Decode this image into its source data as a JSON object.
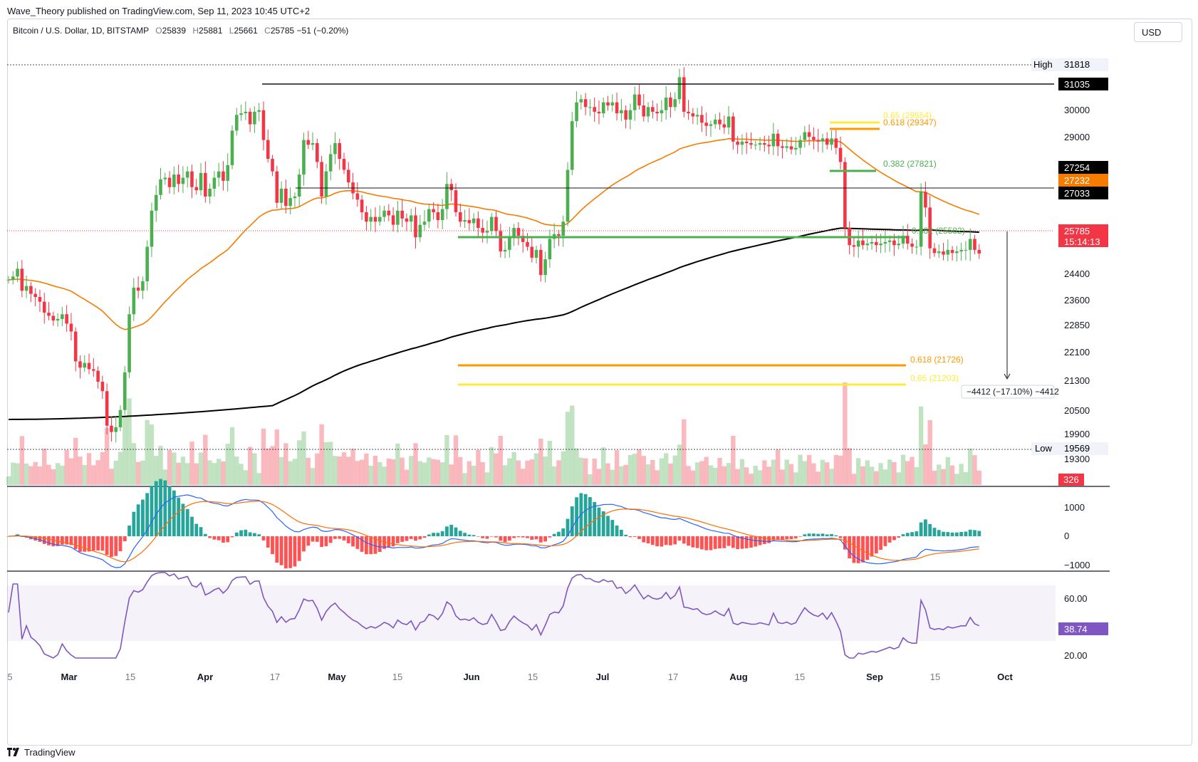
{
  "publisher": "Wave_Theory published on TradingView.com, Sep 11, 2023 10:45 UTC+2",
  "symbol": {
    "name": "Bitcoin / U.S. Dollar, 1D, BITSTAMP",
    "open_label": "O",
    "open": "25839",
    "high_label": "H",
    "high": "25881",
    "low_label": "L",
    "low": "25661",
    "close_label": "C",
    "close": "25785",
    "change": "−51 (−0.20%)"
  },
  "currency_button": "USD",
  "footer": {
    "brand": "TradingView"
  },
  "colors": {
    "up": "#4caf50",
    "down": "#f23645",
    "ema50": "#f57c00",
    "ema200": "#000000",
    "macd": "#2962ff",
    "signal": "#ff6d00",
    "rsi": "#7e57c2",
    "fib_618": "#ff9800",
    "fib_65": "#ffeb3b",
    "fib_382": "#4caf50"
  },
  "chart_data": {
    "type": "candlestick",
    "symbol": "BTCUSD",
    "timeframe": "1D",
    "x_axis": [
      "5",
      "Mar",
      "15",
      "Apr",
      "17",
      "May",
      "15",
      "Jun",
      "15",
      "Jul",
      "17",
      "Aug",
      "15",
      "Sep",
      "15",
      "Oct"
    ],
    "price_axis_labels": [
      "30000",
      "29000",
      "27254",
      "27232",
      "27033",
      "25785",
      "24400",
      "23600",
      "22850",
      "22100",
      "21300",
      "20500",
      "19900",
      "19300",
      "0"
    ],
    "ylim": [
      19000,
      32200
    ],
    "ohlc": [],
    "close": [
      24950,
      25050,
      25300,
      24600,
      24750,
      24500,
      24400,
      24250,
      23900,
      23800,
      23650,
      23700,
      23850,
      23550,
      23300,
      22350,
      22150,
      22300,
      22100,
      22050,
      21700,
      21400,
      20300,
      20100,
      20250,
      20800,
      22000,
      23850,
      24700,
      24600,
      24900,
      26000,
      27150,
      27650,
      28150,
      28200,
      27900,
      28300,
      28000,
      28200,
      28400,
      27900,
      27800,
      28350,
      27600,
      27850,
      28200,
      28400,
      28100,
      28600,
      29700,
      30200,
      30250,
      30300,
      29900,
      30300,
      30350,
      29400,
      28800,
      28400,
      27400,
      27850,
      27300,
      27550,
      27600,
      28300,
      29400,
      29250,
      29300,
      28700,
      27600,
      28400,
      28950,
      29300,
      28800,
      28450,
      28050,
      27700,
      27500,
      27100,
      26800,
      26950,
      26800,
      26950,
      27150,
      27000,
      26700,
      27150,
      26900,
      26800,
      27000,
      26300,
      26700,
      26800,
      27200,
      27100,
      26850,
      27200,
      28000,
      27800,
      27100,
      26800,
      26850,
      26750,
      26900,
      26600,
      26450,
      26500,
      26950,
      26500,
      25850,
      25900,
      26300,
      26600,
      26350,
      26150,
      26000,
      25650,
      25900,
      25100,
      25600,
      26250,
      26400,
      26350,
      26800,
      28450,
      30000,
      30600,
      30700,
      30450,
      30450,
      30300,
      30250,
      30600,
      30500,
      30600,
      30250,
      30350,
      30050,
      30350,
      30850,
      30500,
      30150,
      30450,
      30300,
      30250,
      30350,
      30750,
      30450,
      30700,
      31400,
      30300,
      30250,
      30150,
      30200,
      29950,
      29850,
      29900,
      30050,
      29900,
      29800,
      30150,
      29350,
      29250,
      29350,
      29300,
      29250,
      29250,
      29300,
      29250,
      29200,
      29600,
      29200,
      29150,
      29200,
      29100,
      29150,
      29400,
      29650,
      29500,
      29400,
      29350,
      29450,
      29250,
      29450,
      29150,
      28700,
      26600,
      26050,
      26000,
      26200,
      26050,
      26100,
      26150,
      26050,
      26100,
      26150,
      26200,
      26050,
      26100,
      26350,
      26100,
      26000,
      26000,
      27750,
      27250,
      25950,
      25800,
      25850,
      25750,
      25900,
      25800,
      25850,
      25900,
      25900,
      26250,
      25900,
      25785
    ],
    "volume_peak_label": "326",
    "horizontal_levels": [
      {
        "label": "High",
        "value": "31818"
      },
      {
        "label": "",
        "value": "31035"
      },
      {
        "label": "",
        "value": "27033"
      },
      {
        "label": "Low",
        "value": "19569"
      }
    ],
    "ema50_label": "27232",
    "ema200_label": "27033",
    "last_price_label": "25785",
    "countdown": "15:14:13",
    "fib_levels": [
      {
        "label": "0.65 (29554)",
        "color": "#ffeb3b"
      },
      {
        "label": "0.618 (29347)",
        "color": "#ff9800"
      },
      {
        "label": "0.382 (27821)",
        "color": "#4caf50"
      },
      {
        "label": "0.382 (25582)",
        "color": "#4caf50"
      },
      {
        "label": "0.618 (21726)",
        "color": "#ff9800"
      },
      {
        "label": "0.65 (21203)",
        "color": "#ffeb3b"
      }
    ],
    "measure_label": "−4412 (−17.10%) −4412",
    "macd_axis": [
      "1000",
      "0",
      "−1000"
    ],
    "rsi_axis": [
      "60.00",
      "20.00"
    ],
    "rsi_value": "38.74"
  }
}
